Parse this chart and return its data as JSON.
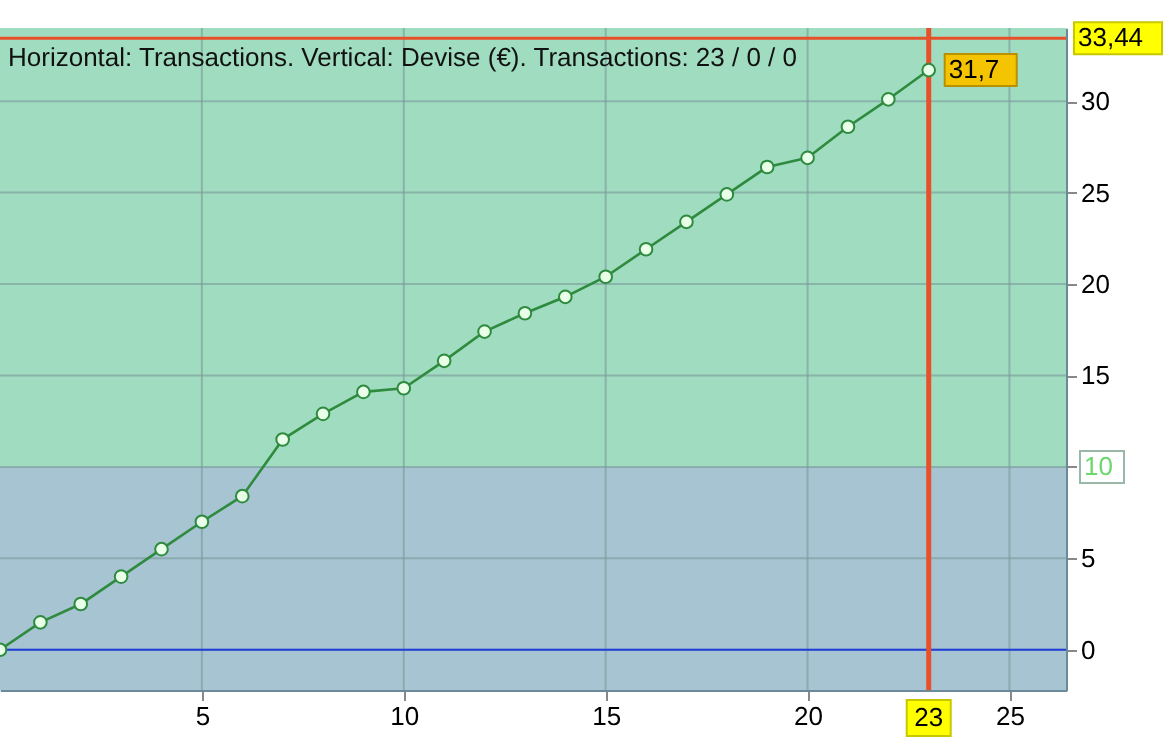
{
  "chart_data": {
    "type": "line",
    "title": "Horizontal: Transactions. Vertical: Devise (€). Transactions: 23 / 0 / 0",
    "x": [
      0,
      1,
      2,
      3,
      4,
      5,
      6,
      7,
      8,
      9,
      10,
      11,
      12,
      13,
      14,
      15,
      16,
      17,
      18,
      19,
      20,
      21,
      22,
      23
    ],
    "series": [
      {
        "color": "#2e8b3e",
        "values": [
          0,
          1.5,
          2.5,
          4.0,
          5.5,
          7.0,
          8.4,
          11.5,
          12.9,
          14.1,
          14.3,
          15.8,
          17.4,
          18.4,
          19.3,
          20.4,
          21.9,
          23.4,
          24.9,
          26.4,
          26.9,
          28.6,
          30.1,
          31.7
        ],
        "value_labels": [
          null,
          null,
          null,
          null,
          null,
          null,
          null,
          null,
          null,
          null,
          null,
          null,
          null,
          null,
          null,
          null,
          null,
          null,
          null,
          null,
          null,
          null,
          null,
          "31,7"
        ]
      }
    ],
    "marker": "circle",
    "line_style": "solid",
    "grid": true,
    "xlim": [
      0,
      26.4
    ],
    "xticks": [
      5,
      10,
      15,
      20,
      25
    ],
    "ylim": [
      -2.2,
      34
    ],
    "yticks": [
      0,
      5,
      {
        "value": 10,
        "label": null
      },
      15,
      20,
      25,
      30
    ],
    "bands": [
      {
        "axis": "y",
        "from": 10,
        "to": 34,
        "color": "#9fdcc0"
      },
      {
        "axis": "y",
        "from": -2.2,
        "to": 10,
        "color": "#a6c4d2",
        "label": "10"
      }
    ],
    "ref_lines": [
      {
        "axis": "y",
        "value": 0,
        "color": "#1f3fdd",
        "line_style": "solid"
      },
      {
        "axis": "y",
        "value": 33.44,
        "label": "33,44",
        "color": "#e8502a",
        "line_style": "solid"
      },
      {
        "axis": "x",
        "value": 23,
        "label": "23",
        "color": "#e8502a",
        "line_style": "solid"
      }
    ]
  }
}
